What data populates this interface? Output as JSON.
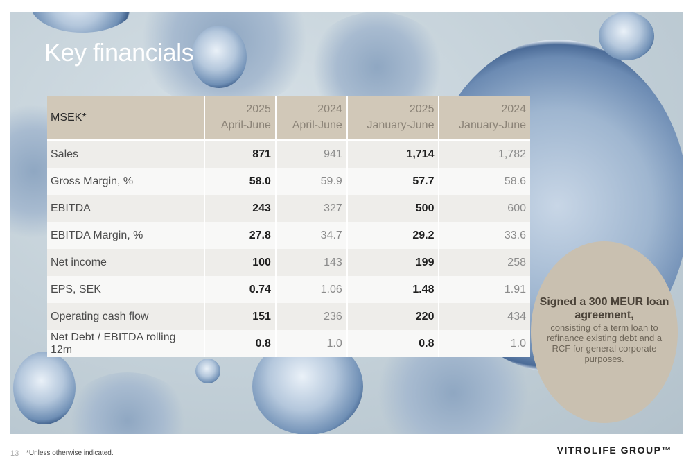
{
  "title": "Key financials",
  "table": {
    "label_header": "MSEK*",
    "columns": [
      {
        "year": "2025",
        "period": "April-June"
      },
      {
        "year": "2024",
        "period": "April-June"
      },
      {
        "year": "2025",
        "period": "January-June"
      },
      {
        "year": "2024",
        "period": "January-June"
      }
    ],
    "rows": [
      {
        "label": "Sales",
        "values": [
          "871",
          "941",
          "1,714",
          "1,782"
        ]
      },
      {
        "label": "Gross Margin, %",
        "values": [
          "58.0",
          "59.9",
          "57.7",
          "58.6"
        ]
      },
      {
        "label": "EBITDA",
        "values": [
          "243",
          "327",
          "500",
          "600"
        ]
      },
      {
        "label": "EBITDA Margin, %",
        "values": [
          "27.8",
          "34.7",
          "29.2",
          "33.6"
        ]
      },
      {
        "label": "Net income",
        "values": [
          "100",
          "143",
          "199",
          "258"
        ]
      },
      {
        "label": "EPS, SEK",
        "values": [
          "0.74",
          "1.06",
          "1.48",
          "1.91"
        ]
      },
      {
        "label": "Operating cash flow",
        "values": [
          "151",
          "236",
          "220",
          "434"
        ]
      },
      {
        "label": "Net Debt / EBITDA rolling 12m",
        "values": [
          "0.8",
          "1.0",
          "0.8",
          "1.0"
        ]
      }
    ]
  },
  "callout": {
    "headline": "Signed a 300 MEUR loan agreement,",
    "body": "consisting of a term loan to refinance existing debt and a RCF for general corporate purposes."
  },
  "footer": {
    "page_number": "13",
    "footnote": "*Unless otherwise indicated.",
    "logo": "VITROLIFE GROUP™"
  },
  "colors": {
    "header_bg": "#d1c8b8",
    "callout_bg": "#c9c0b0",
    "row_odd": "#eeedea",
    "row_even": "#f8f8f7"
  }
}
